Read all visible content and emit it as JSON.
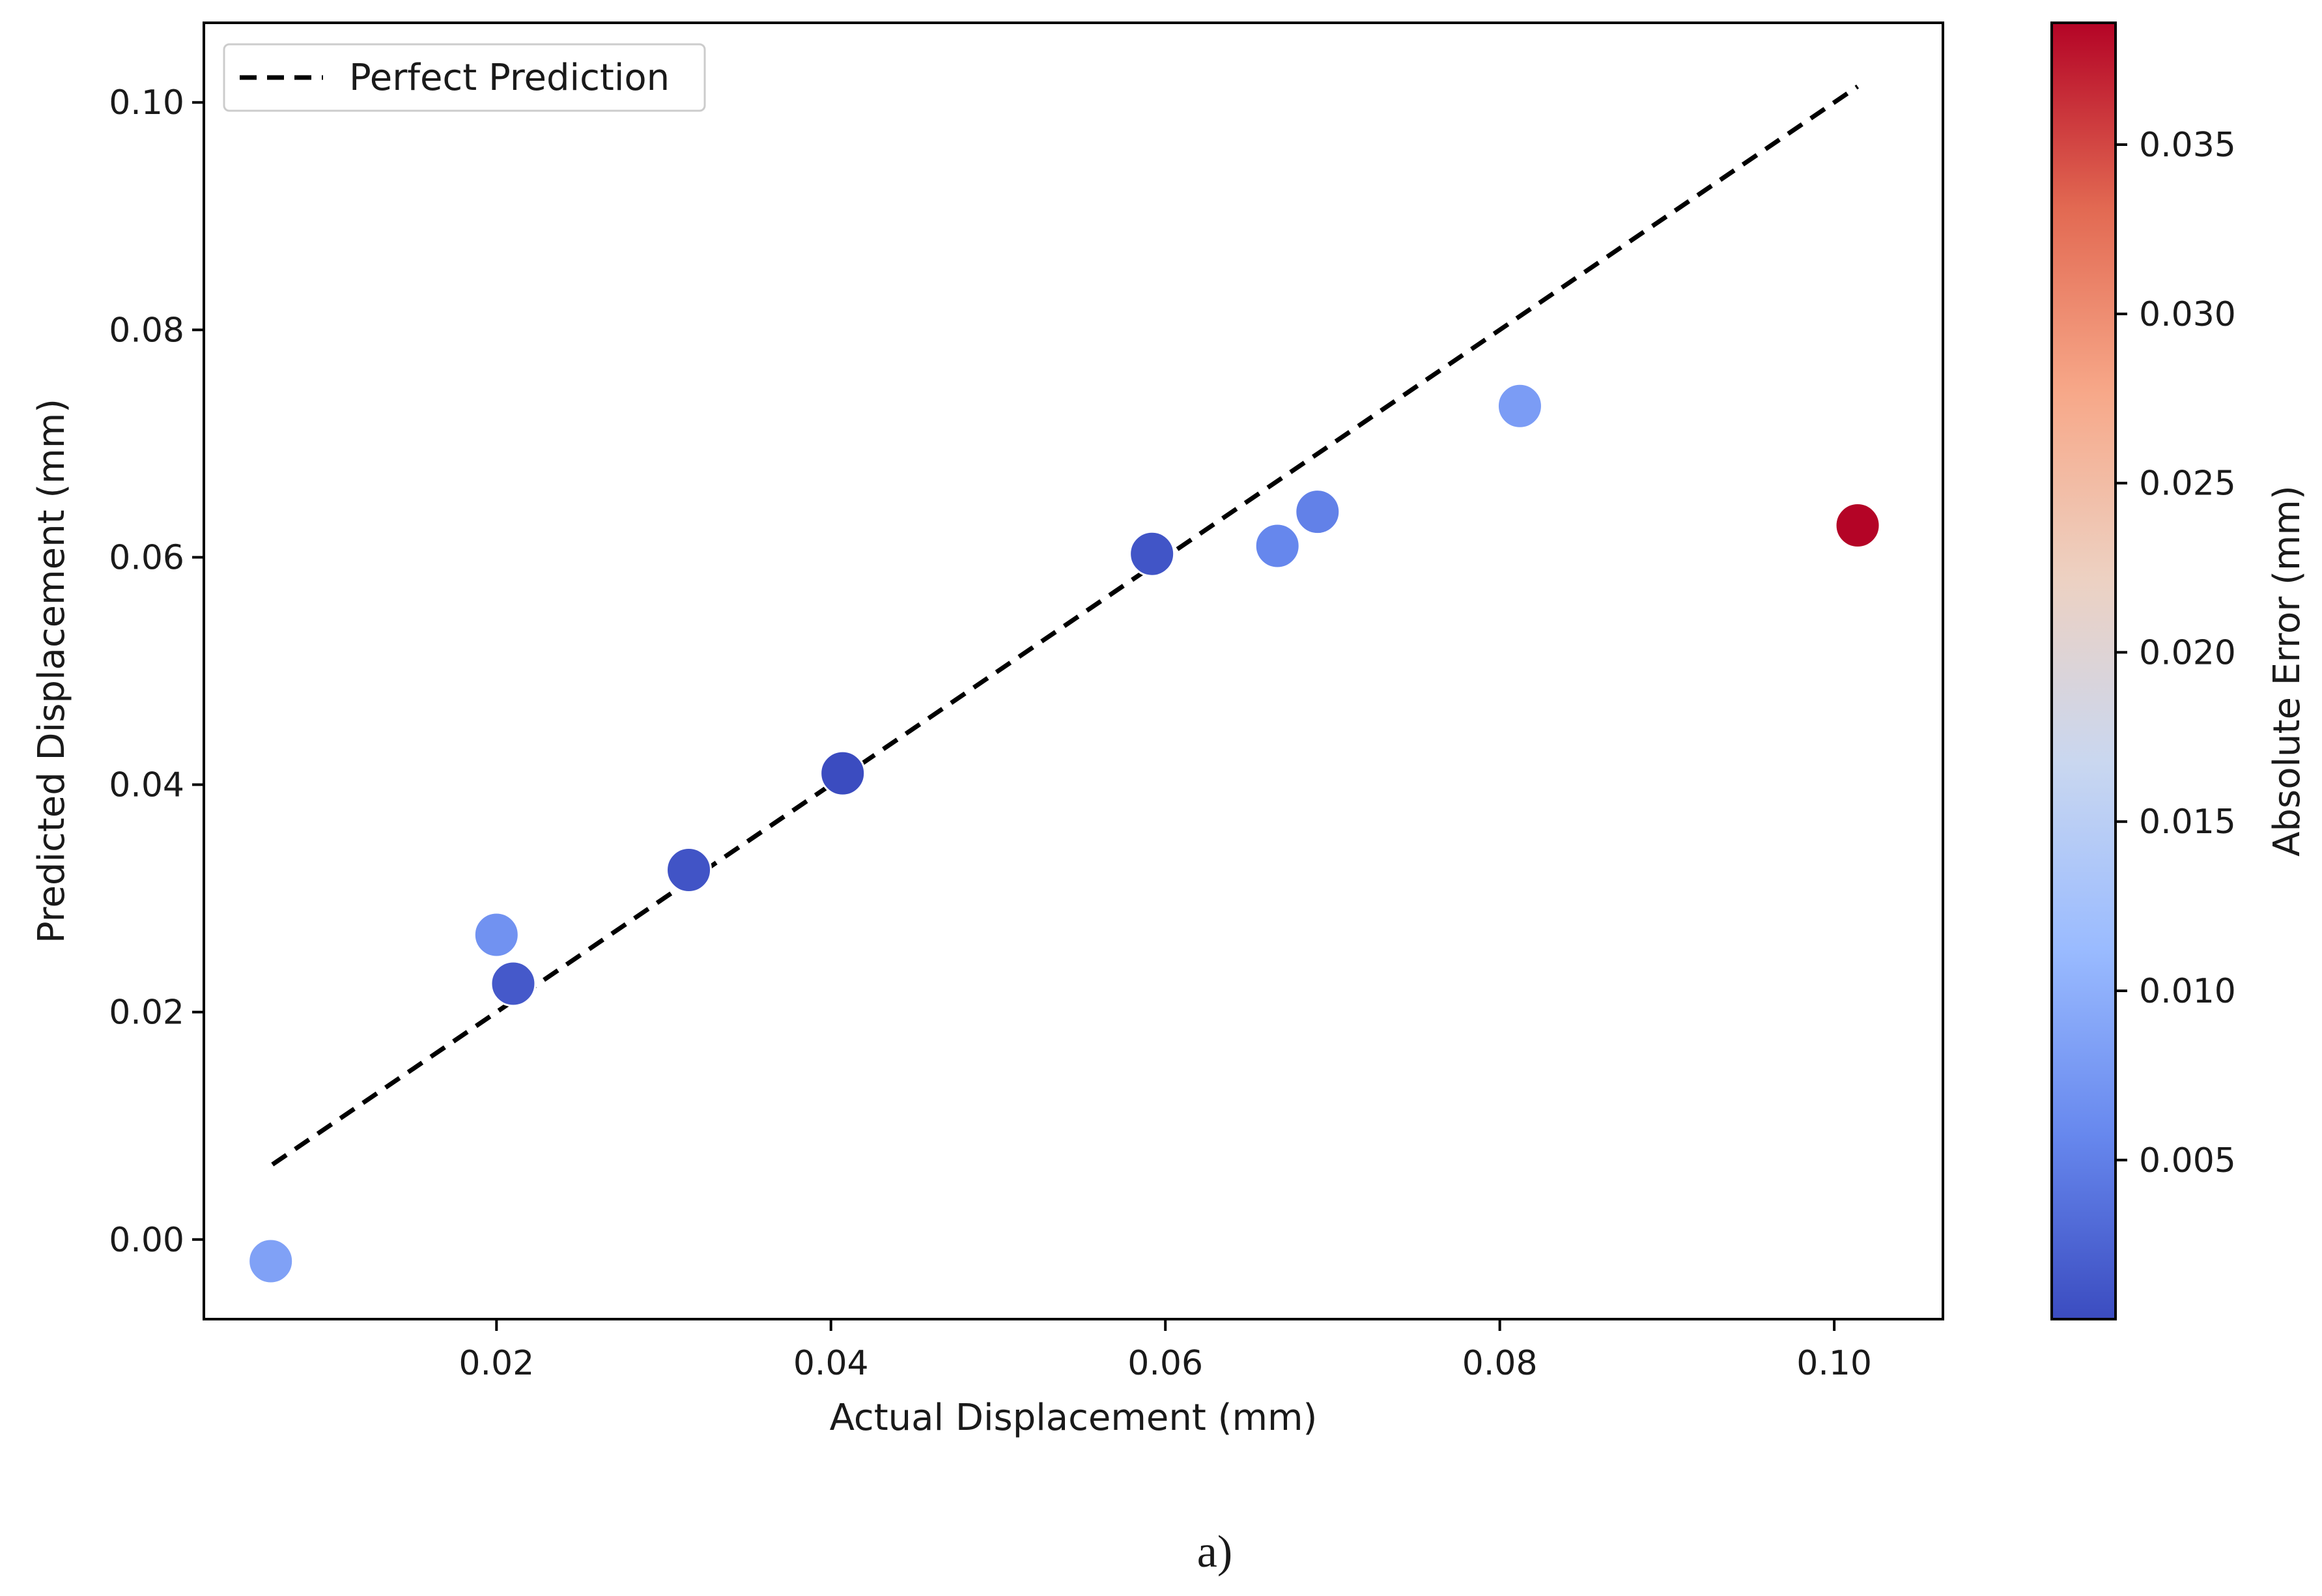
{
  "chart_data": {
    "type": "scatter",
    "xlabel": "Actual Displacement (mm)",
    "ylabel": "Predicted Displacement (mm)",
    "xlim": [
      0.0025,
      0.1065
    ],
    "ylim": [
      -0.007,
      0.107
    ],
    "x_ticks": [
      0.02,
      0.04,
      0.06,
      0.08,
      0.1
    ],
    "x_tick_labels": [
      "0.02",
      "0.04",
      "0.06",
      "0.08",
      "0.10"
    ],
    "y_ticks": [
      0.0,
      0.02,
      0.04,
      0.06,
      0.08,
      0.1
    ],
    "y_tick_labels": [
      "0.00",
      "0.02",
      "0.04",
      "0.06",
      "0.08",
      "0.10"
    ],
    "grid": false,
    "legend": {
      "entries": [
        "Perfect Prediction"
      ],
      "placement": "top-left"
    },
    "reference_line": {
      "name": "Perfect Prediction",
      "style": "dashed",
      "color": "#000000",
      "x": [
        0.0066,
        0.1014
      ],
      "y": [
        0.0066,
        0.1014
      ]
    },
    "points": [
      {
        "x": 0.0065,
        "y": -0.0019,
        "error": 0.0084
      },
      {
        "x": 0.02,
        "y": 0.0268,
        "error": 0.0068
      },
      {
        "x": 0.021,
        "y": 0.0225,
        "error": 0.0015
      },
      {
        "x": 0.0315,
        "y": 0.0325,
        "error": 0.001
      },
      {
        "x": 0.0407,
        "y": 0.041,
        "error": 0.0003
      },
      {
        "x": 0.0592,
        "y": 0.0603,
        "error": 0.0011
      },
      {
        "x": 0.0667,
        "y": 0.061,
        "error": 0.0057
      },
      {
        "x": 0.0691,
        "y": 0.064,
        "error": 0.0051
      },
      {
        "x": 0.0812,
        "y": 0.0733,
        "error": 0.0079
      },
      {
        "x": 0.1014,
        "y": 0.0628,
        "error": 0.0386
      }
    ],
    "colorbar": {
      "label": "Absolute Error (mm)",
      "colormap": "coolwarm",
      "range": [
        0.0003,
        0.0386
      ],
      "ticks": [
        0.005,
        0.01,
        0.015,
        0.02,
        0.025,
        0.03,
        0.035
      ],
      "tick_labels": [
        "0.005",
        "0.010",
        "0.015",
        "0.020",
        "0.025",
        "0.030",
        "0.035"
      ],
      "stops": [
        "#3b4cc0",
        "#6788ee",
        "#9abbff",
        "#c9d7f0",
        "#edd1c2",
        "#f7a889",
        "#e26952",
        "#b40426"
      ]
    }
  },
  "caption": "a)"
}
